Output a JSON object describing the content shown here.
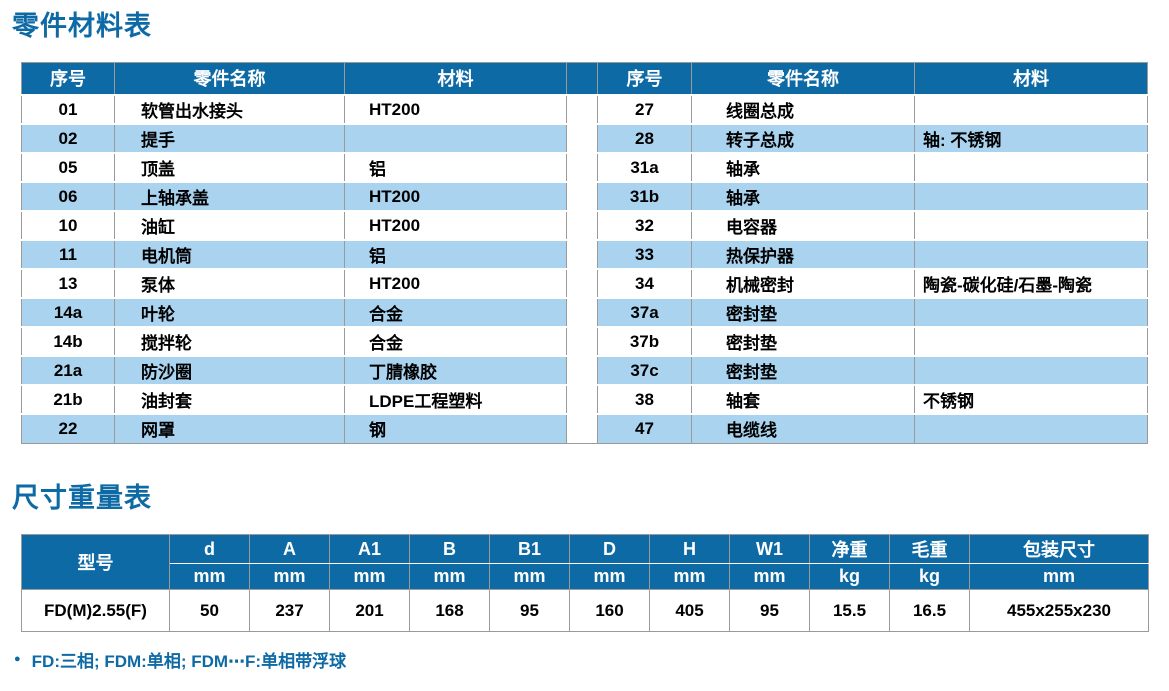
{
  "colors": {
    "header_blue": "#0e6aa5",
    "stripe_blue": "#a9d3ef",
    "border_gray": "#9a9a9a",
    "text_black": "#000000",
    "row_white": "#ffffff"
  },
  "parts_table": {
    "title": "零件材料表",
    "headers": {
      "no": "序号",
      "name": "零件名称",
      "material": "材料"
    },
    "left_rows": [
      {
        "no": "01",
        "name": "软管出水接头",
        "material": "HT200"
      },
      {
        "no": "02",
        "name": "提手",
        "material": ""
      },
      {
        "no": "05",
        "name": "顶盖",
        "material": "铝"
      },
      {
        "no": "06",
        "name": "上轴承盖",
        "material": "HT200"
      },
      {
        "no": "10",
        "name": "油缸",
        "material": "HT200"
      },
      {
        "no": "11",
        "name": "电机筒",
        "material": "铝"
      },
      {
        "no": "13",
        "name": "泵体",
        "material": "HT200"
      },
      {
        "no": "14a",
        "name": "叶轮",
        "material": "合金"
      },
      {
        "no": "14b",
        "name": "搅拌轮",
        "material": "合金"
      },
      {
        "no": "21a",
        "name": "防沙圈",
        "material": "丁腈橡胶"
      },
      {
        "no": "21b",
        "name": "油封套",
        "material": "LDPE工程塑料"
      },
      {
        "no": "22",
        "name": "网罩",
        "material": "钢"
      }
    ],
    "right_rows": [
      {
        "no": "27",
        "name": "线圈总成",
        "material": ""
      },
      {
        "no": "28",
        "name": "转子总成",
        "material": "轴: 不锈钢"
      },
      {
        "no": "31a",
        "name": "轴承",
        "material": ""
      },
      {
        "no": "31b",
        "name": "轴承",
        "material": ""
      },
      {
        "no": "32",
        "name": "电容器",
        "material": ""
      },
      {
        "no": "33",
        "name": "热保护器",
        "material": ""
      },
      {
        "no": "34",
        "name": "机械密封",
        "material": "陶瓷-碳化硅/石墨-陶瓷"
      },
      {
        "no": "37a",
        "name": "密封垫",
        "material": ""
      },
      {
        "no": "37b",
        "name": "密封垫",
        "material": ""
      },
      {
        "no": "37c",
        "name": "密封垫",
        "material": ""
      },
      {
        "no": "38",
        "name": "轴套",
        "material": "不锈钢"
      },
      {
        "no": "47",
        "name": "电缆线",
        "material": ""
      }
    ]
  },
  "dims_table": {
    "title": "尺寸重量表",
    "model_header": "型号",
    "columns": [
      {
        "label": "d",
        "unit": "mm"
      },
      {
        "label": "A",
        "unit": "mm"
      },
      {
        "label": "A1",
        "unit": "mm"
      },
      {
        "label": "B",
        "unit": "mm"
      },
      {
        "label": "B1",
        "unit": "mm"
      },
      {
        "label": "D",
        "unit": "mm"
      },
      {
        "label": "H",
        "unit": "mm"
      },
      {
        "label": "W1",
        "unit": "mm"
      },
      {
        "label": "净重",
        "unit": "kg"
      },
      {
        "label": "毛重",
        "unit": "kg"
      },
      {
        "label": "包装尺寸",
        "unit": "mm"
      }
    ],
    "rows": [
      {
        "model": "FD(M)2.55(F)",
        "values": [
          "50",
          "237",
          "201",
          "168",
          "95",
          "160",
          "405",
          "95",
          "15.5",
          "16.5",
          "455x255x230"
        ]
      }
    ]
  },
  "footnote": {
    "bullet": "●",
    "text": "FD:三相; FDM:单相; FDM⋯F:单相带浮球"
  }
}
